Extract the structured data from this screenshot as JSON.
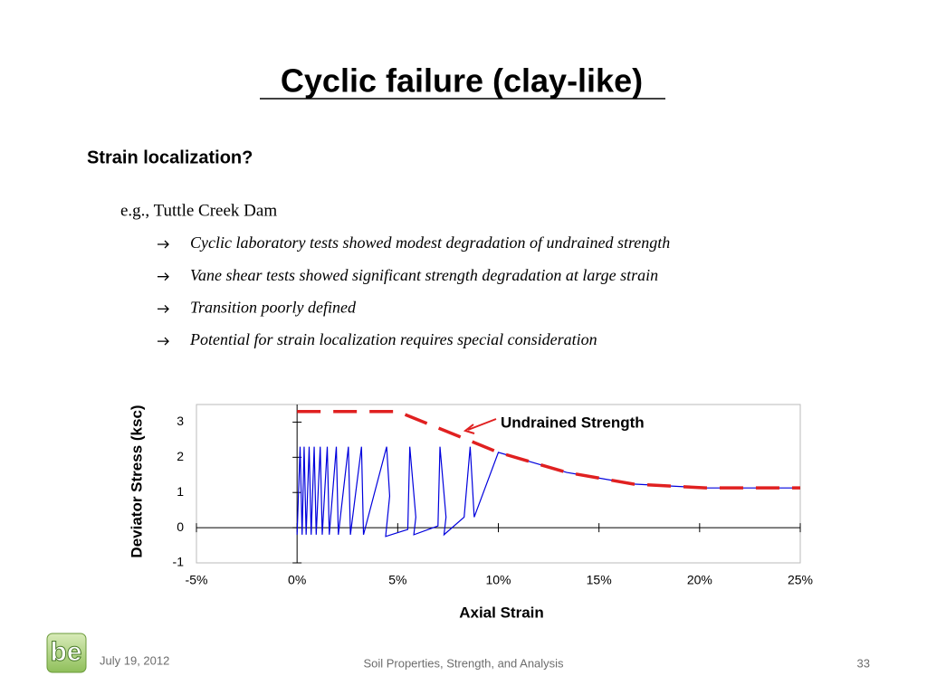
{
  "title": "Cyclic failure (clay-like)",
  "heading": "Strain localization?",
  "example": "e.g., Tuttle Creek Dam",
  "bullets": [
    "Cyclic laboratory tests showed modest degradation of undrained strength",
    "Vane shear tests showed significant strength degradation at large strain",
    "Transition poorly defined",
    "Potential for strain localization requires special consideration"
  ],
  "footer": {
    "logo": "be",
    "date": "July 19, 2012",
    "center": "Soil Properties, Strength, and Analysis",
    "page": "33"
  },
  "chart_data": {
    "type": "line",
    "x_label": "Axial Strain",
    "y_label": "Deviator Stress (ksc)",
    "xlim": [
      -5,
      25
    ],
    "ylim": [
      -1,
      3.5
    ],
    "xticks": [
      {
        "value": -5,
        "label": "-5%"
      },
      {
        "value": 0,
        "label": "0%"
      },
      {
        "value": 5,
        "label": "5%"
      },
      {
        "value": 10,
        "label": "10%"
      },
      {
        "value": 15,
        "label": "15%"
      },
      {
        "value": 20,
        "label": "20%"
      },
      {
        "value": 25,
        "label": "25%"
      }
    ],
    "yticks": [
      -1,
      0,
      1,
      2,
      3
    ],
    "series": [
      {
        "color": "#0000dd",
        "x": [
          0,
          0.15,
          0.25,
          0.35,
          0.45,
          0.6,
          0.7,
          0.85,
          0.95,
          1.15,
          1.25,
          1.5,
          1.6,
          1.95,
          2.05,
          2.55,
          2.65,
          3.2,
          3.3,
          4.45,
          4.6,
          4.4,
          5.5,
          5.6,
          5.9,
          5.8,
          7,
          7.1,
          7.4,
          7.3,
          8.3,
          8.6,
          8.8,
          10,
          13.4,
          16.7,
          20.3,
          25
        ],
        "values": [
          -0.2,
          2.3,
          -0.2,
          2.3,
          -0.2,
          2.3,
          -0.2,
          2.3,
          -0.2,
          2.3,
          -0.2,
          2.3,
          -0.2,
          2.3,
          -0.2,
          2.3,
          -0.2,
          2.3,
          -0.2,
          2.3,
          0.9,
          -0.25,
          -0.05,
          2.3,
          0.3,
          -0.2,
          0.05,
          2.3,
          0.3,
          -0.2,
          0.3,
          2.3,
          0.3,
          2.14,
          1.57,
          1.24,
          1.13,
          1.13
        ]
      },
      {
        "name": "Undrained Strength",
        "color": "#e02020",
        "dashed": true,
        "x": [
          0,
          5,
          10,
          13.4,
          16.7,
          20.3,
          25
        ],
        "values": [
          3.3,
          3.3,
          2.14,
          1.57,
          1.24,
          1.13,
          1.13
        ]
      }
    ]
  }
}
